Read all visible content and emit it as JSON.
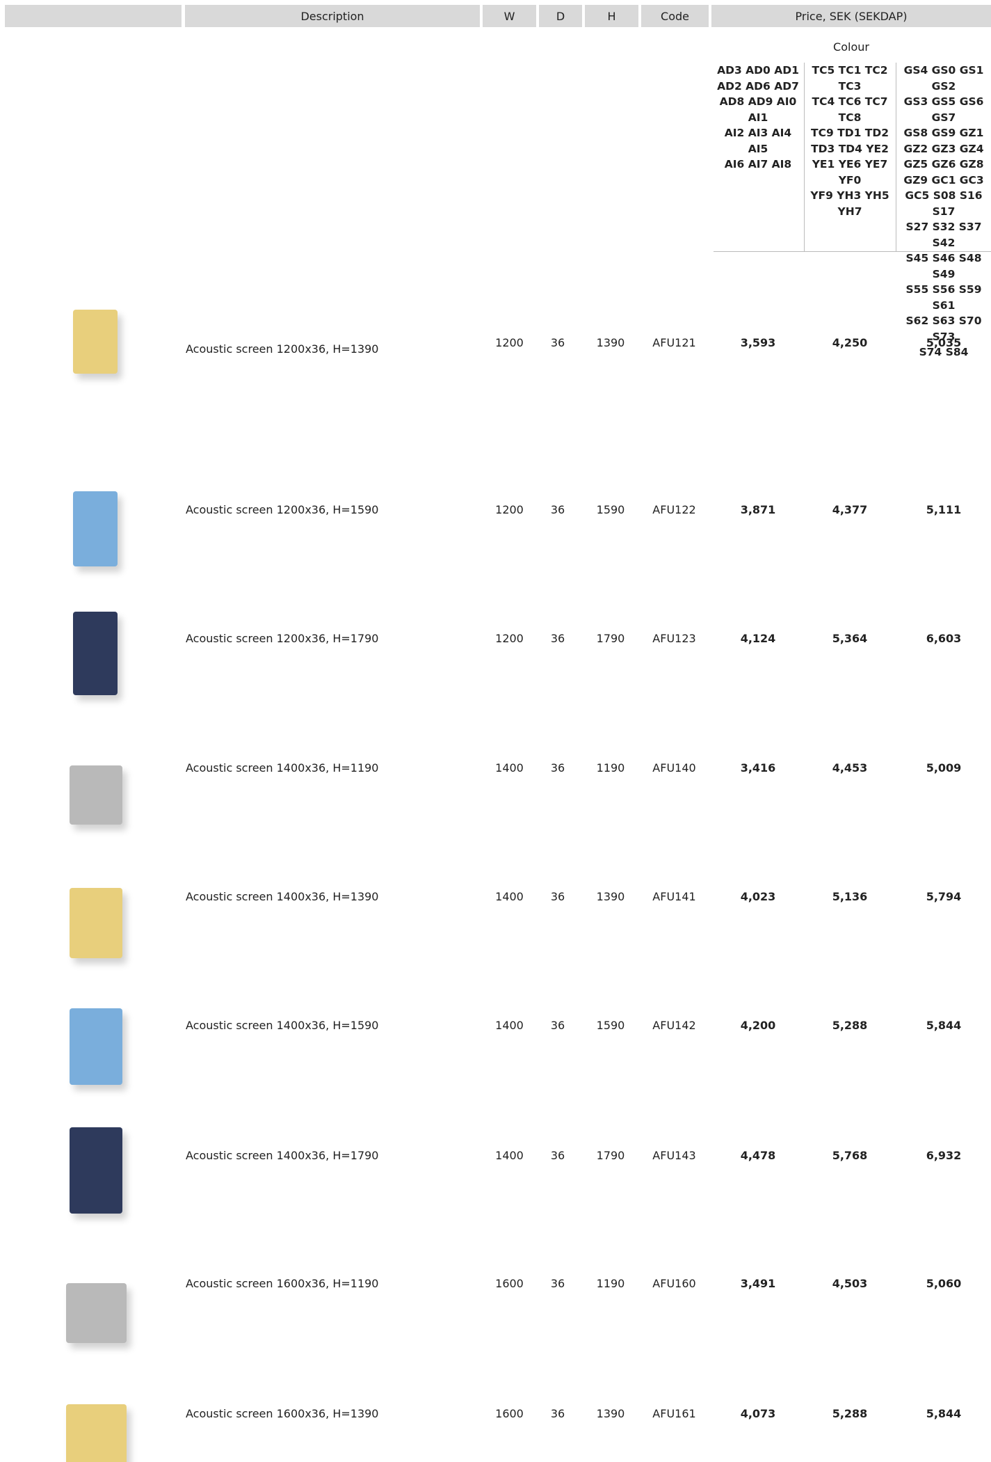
{
  "header": {
    "columns": [
      "Description",
      "W",
      "D",
      "H",
      "Code",
      "Price, SEK (SEKDAP)"
    ]
  },
  "colour_label": "Colour",
  "colour_groups": [
    [
      "AD3 AD0 AD1",
      "AD2 AD6 AD7",
      "AD8 AD9 AI0 AI1",
      "AI2 AI3 AI4 AI5",
      "AI6 AI7 AI8"
    ],
    [
      "TC5 TC1 TC2 TC3",
      "TC4 TC6 TC7 TC8",
      "TC9 TD1 TD2",
      "TD3 TD4 YE2",
      "YE1 YE6 YE7 YF0",
      "YF9 YH3 YH5",
      "YH7"
    ],
    [
      "GS4 GS0 GS1 GS2",
      "GS3 GS5 GS6 GS7",
      "GS8 GS9 GZ1",
      "GZ2 GZ3 GZ4",
      "GZ5 GZ6 GZ8",
      "GZ9 GC1 GC3",
      "GC5 S08 S16 S17",
      "S27 S32 S37 S42",
      "S45 S46 S48 S49",
      "S55 S56 S59 S61",
      "S62 S63 S70 S73",
      "S74 S84"
    ]
  ],
  "rows": [
    {
      "description": "Acoustic screen 1200x36, H=1390",
      "w": 1200,
      "d": 36,
      "h": 1390,
      "code": "AFU121",
      "prices": [
        "3,593",
        "4,250",
        "5,035"
      ]
    },
    {
      "description": "Acoustic screen 1200x36, H=1590",
      "w": 1200,
      "d": 36,
      "h": 1590,
      "code": "AFU122",
      "prices": [
        "3,871",
        "4,377",
        "5,111"
      ]
    },
    {
      "description": "Acoustic screen 1200x36, H=1790",
      "w": 1200,
      "d": 36,
      "h": 1790,
      "code": "AFU123",
      "prices": [
        "4,124",
        "5,364",
        "6,603"
      ]
    },
    {
      "description": "Acoustic screen 1400x36, H=1190",
      "w": 1400,
      "d": 36,
      "h": 1190,
      "code": "AFU140",
      "prices": [
        "3,416",
        "4,453",
        "5,009"
      ]
    },
    {
      "description": "Acoustic screen 1400x36, H=1390",
      "w": 1400,
      "d": 36,
      "h": 1390,
      "code": "AFU141",
      "prices": [
        "4,023",
        "5,136",
        "5,794"
      ]
    },
    {
      "description": "Acoustic screen 1400x36, H=1590",
      "w": 1400,
      "d": 36,
      "h": 1590,
      "code": "AFU142",
      "prices": [
        "4,200",
        "5,288",
        "5,844"
      ]
    },
    {
      "description": "Acoustic screen 1400x36, H=1790",
      "w": 1400,
      "d": 36,
      "h": 1790,
      "code": "AFU143",
      "prices": [
        "4,478",
        "5,768",
        "6,932"
      ]
    },
    {
      "description": "Acoustic screen 1600x36, H=1190",
      "w": 1600,
      "d": 36,
      "h": 1190,
      "code": "AFU160",
      "prices": [
        "3,491",
        "4,503",
        "5,060"
      ]
    },
    {
      "description": "Acoustic screen 1600x36, H=1390",
      "w": 1600,
      "d": 36,
      "h": 1390,
      "code": "AFU161",
      "prices": [
        "4,073",
        "5,288",
        "5,844"
      ]
    }
  ]
}
